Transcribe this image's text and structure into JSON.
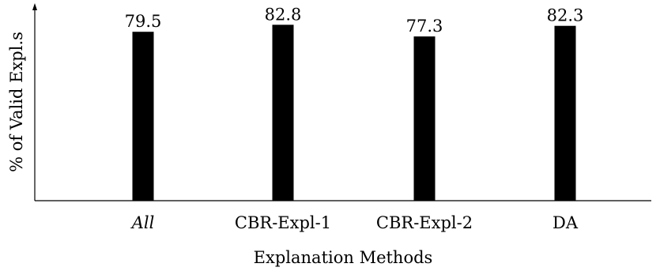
{
  "chart_data": {
    "type": "bar",
    "categories": [
      "All",
      "CBR-Expl-1",
      "CBR-Expl-2",
      "DA"
    ],
    "category_italic": [
      true,
      false,
      false,
      false
    ],
    "values": [
      79.5,
      82.8,
      77.3,
      82.3
    ],
    "data_labels": [
      "79.5",
      "82.8",
      "77.3",
      "82.3"
    ],
    "xlabel": "Explanation Methods",
    "ylabel": "% of Valid Expl.s",
    "ylim": [
      0,
      90
    ],
    "grid": false,
    "bar_color": "#000000"
  }
}
